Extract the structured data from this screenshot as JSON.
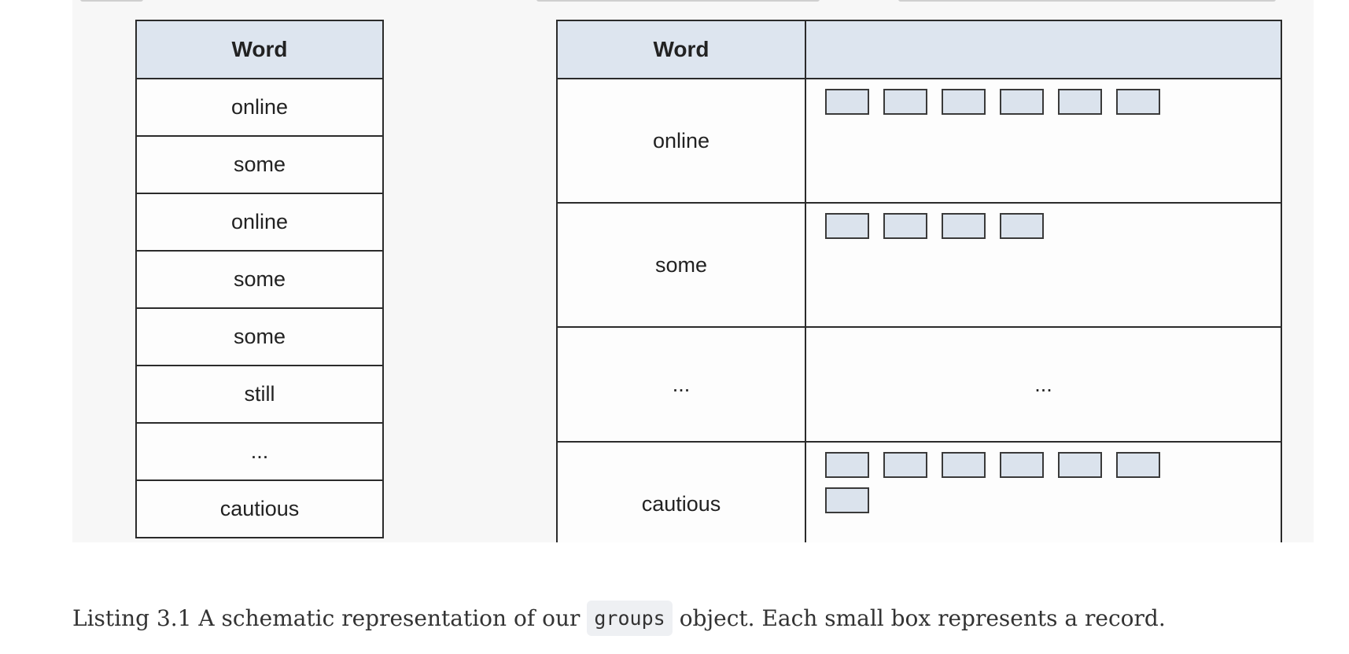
{
  "left_table": {
    "header": "Word",
    "rows": [
      "online",
      "some",
      "online",
      "some",
      "some",
      "still",
      "...",
      "cautious"
    ]
  },
  "right_table": {
    "header_word": "Word",
    "header_records": "",
    "rows": [
      {
        "word": "online",
        "record_count": 6,
        "records_text": ""
      },
      {
        "word": "some",
        "record_count": 4,
        "records_text": ""
      },
      {
        "word": "...",
        "record_count": 0,
        "records_text": "..."
      },
      {
        "word": "cautious",
        "record_count": 7,
        "records_text": ""
      }
    ]
  },
  "caption": {
    "prefix": "Listing 3.1 A schematic representation of our",
    "code": "groups",
    "suffix": "object. Each small box represents a record."
  },
  "colors": {
    "header_fill": "#dde5ef",
    "record_fill": "#dbe3ed",
    "border": "#2b2b2b",
    "figure_background": "#f7f7f7"
  }
}
